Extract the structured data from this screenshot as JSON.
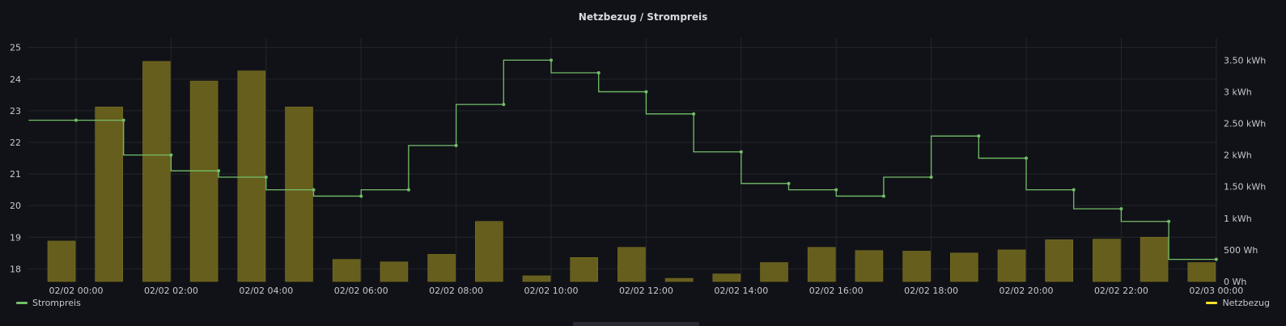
{
  "chart_data": {
    "type": "bar+line",
    "title": "Netzbezug / Strompreis",
    "x_tick_labels": [
      "02/02 00:00",
      "02/02 02:00",
      "02/02 04:00",
      "02/02 06:00",
      "02/02 08:00",
      "02/02 10:00",
      "02/02 12:00",
      "02/02 14:00",
      "02/02 16:00",
      "02/02 18:00",
      "02/02 20:00",
      "02/02 22:00",
      "02/03 00:00"
    ],
    "x_hours": [
      0,
      1,
      2,
      3,
      4,
      5,
      6,
      7,
      8,
      9,
      10,
      11,
      12,
      13,
      14,
      15,
      16,
      17,
      18,
      19,
      20,
      21,
      22,
      23,
      24
    ],
    "y_left": {
      "ticks": [
        18,
        19,
        20,
        21,
        22,
        23,
        24,
        25
      ],
      "range": [
        17.6,
        25.3
      ]
    },
    "y_right": {
      "ticks": [
        0,
        500,
        1000,
        1500,
        2000,
        2500,
        3000,
        3500
      ],
      "tick_labels": [
        "0 Wh",
        "500 Wh",
        "1 kWh",
        "1.50 kWh",
        "2 kWh",
        "2.50 kWh",
        "3 kWh",
        "3.50 kWh"
      ],
      "range": [
        0,
        3850
      ]
    },
    "series": [
      {
        "name": "Netzbezug",
        "type": "bar",
        "axis": "right",
        "color": "#FADE2A",
        "unit": "Wh",
        "values": [
          640,
          2760,
          3480,
          3170,
          3330,
          2760,
          350,
          310,
          430,
          950,
          90,
          380,
          540,
          50,
          120,
          300,
          540,
          490,
          480,
          450,
          500,
          660,
          670,
          700,
          300
        ]
      },
      {
        "name": "Strompreis",
        "type": "line",
        "step": "end",
        "axis": "left",
        "color": "#73BF69",
        "x": [
          -1,
          0,
          1,
          2,
          3,
          4,
          5,
          6,
          7,
          8,
          9,
          10,
          11,
          12,
          13,
          14,
          15,
          16,
          17,
          18,
          19,
          20,
          21,
          22,
          23,
          24
        ],
        "values": [
          22.7,
          22.7,
          21.6,
          21.1,
          20.9,
          20.5,
          20.3,
          20.5,
          21.9,
          23.2,
          24.6,
          24.2,
          23.6,
          22.9,
          21.7,
          20.7,
          20.5,
          20.3,
          20.9,
          22.2,
          21.5,
          20.5,
          19.9,
          19.5,
          18.3,
          18.3
        ]
      }
    ],
    "grid": true,
    "legend": {
      "left": "Strompreis",
      "right": "Netzbezug",
      "placement": "bottom"
    }
  }
}
